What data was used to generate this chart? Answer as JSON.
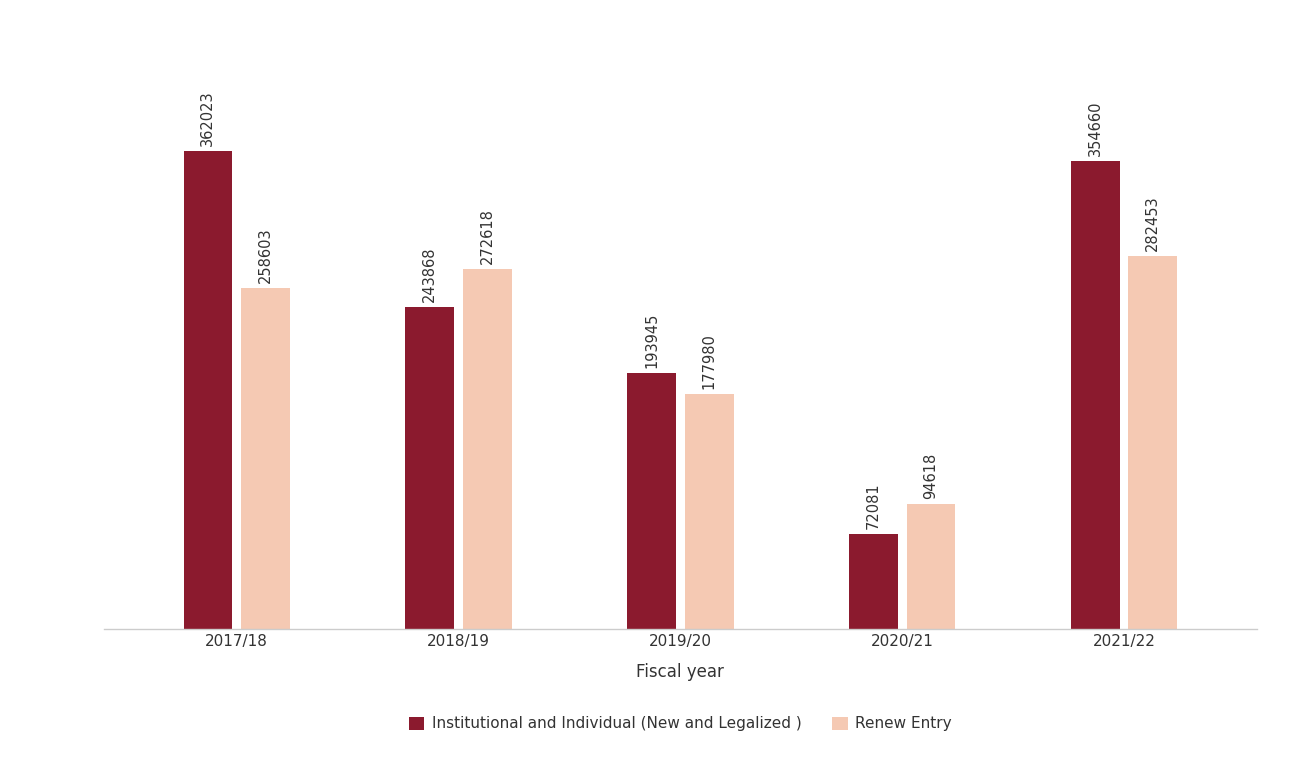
{
  "fiscal_years": [
    "2017/18",
    "2018/19",
    "2019/20",
    "2020/21",
    "2021/22"
  ],
  "institutional": [
    362023,
    243868,
    193945,
    72081,
    354660
  ],
  "renew_entry": [
    258603,
    272618,
    177980,
    94618,
    282453
  ],
  "bar_color_institutional": "#8B1A2E",
  "bar_color_renew": "#F5C9B3",
  "xlabel": "Fiscal year",
  "legend_label_1": "Institutional and Individual (New and Legalized )",
  "legend_label_2": "Renew Entry",
  "ylim": [
    0,
    430000
  ],
  "bar_width": 0.22,
  "bar_gap": 0.04,
  "annotation_fontsize": 10.5,
  "axis_fontsize": 12,
  "tick_fontsize": 11,
  "legend_fontsize": 11,
  "background_color": "#ffffff",
  "text_color": "#333333",
  "spine_color": "#cccccc"
}
